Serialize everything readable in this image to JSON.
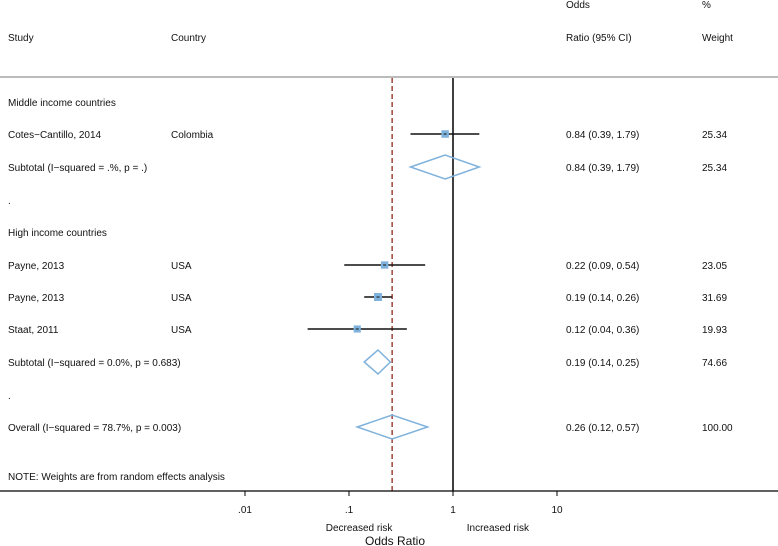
{
  "chart_data": {
    "type": "forest",
    "headers": {
      "study": "Study",
      "country": "Country",
      "or_line1": "Odds",
      "or_line2": "Ratio (95% CI)",
      "weight_line1": "%",
      "weight_line2": "Weight"
    },
    "rows": [
      {
        "kind": "group",
        "label": "Middle income countries"
      },
      {
        "kind": "study",
        "label": "Cotes−Cantillo, 2014",
        "country": "Colombia",
        "or": 0.84,
        "lo": 0.39,
        "hi": 1.79,
        "ci_text": "0.84 (0.39, 1.79)",
        "weight": "25.34",
        "w": 25.34
      },
      {
        "kind": "subtotal",
        "label": "Subtotal  (I−squared = .%, p = .)",
        "or": 0.84,
        "lo": 0.39,
        "hi": 1.79,
        "ci_text": "0.84 (0.39, 1.79)",
        "weight": "25.34"
      },
      {
        "kind": "dot",
        "label": "."
      },
      {
        "kind": "group",
        "label": "High income countries"
      },
      {
        "kind": "study",
        "label": "Payne, 2013",
        "country": "USA",
        "or": 0.22,
        "lo": 0.09,
        "hi": 0.54,
        "ci_text": "0.22 (0.09, 0.54)",
        "weight": "23.05",
        "w": 23.05
      },
      {
        "kind": "study",
        "label": "Payne, 2013",
        "country": "USA",
        "or": 0.19,
        "lo": 0.14,
        "hi": 0.26,
        "ci_text": "0.19 (0.14, 0.26)",
        "weight": "31.69",
        "w": 31.69
      },
      {
        "kind": "study",
        "label": "Staat, 2011",
        "country": "USA",
        "or": 0.12,
        "lo": 0.04,
        "hi": 0.36,
        "ci_text": "0.12 (0.04, 0.36)",
        "weight": "19.93",
        "w": 19.93
      },
      {
        "kind": "subtotal",
        "label": "Subtotal  (I−squared = 0.0%, p = 0.683)",
        "or": 0.19,
        "lo": 0.14,
        "hi": 0.25,
        "ci_text": "0.19 (0.14, 0.25)",
        "weight": "74.66"
      },
      {
        "kind": "dot",
        "label": "."
      },
      {
        "kind": "overall",
        "label": "Overall  (I−squared = 78.7%, p = 0.003)",
        "or": 0.26,
        "lo": 0.12,
        "hi": 0.57,
        "ci_text": "0.26 (0.12, 0.57)",
        "weight": "100.00"
      }
    ],
    "note": "NOTE: Weights are from random effects analysis",
    "x_scale": "log",
    "xlim": [
      0.005,
      35
    ],
    "x_ticks": [
      0.01,
      0.1,
      1,
      10
    ],
    "x_tick_labels": [
      ".01",
      ".1",
      "1",
      "10"
    ],
    "null_value": 1,
    "overall_line_value": 0.26,
    "xlabel": "Odds Ratio",
    "left_annotation": "Decreased risk",
    "right_annotation": "Increased risk",
    "colors": {
      "marker": "#7fb2dc",
      "diamond": "#7fb2dc",
      "overall_line": "#a0443c",
      "ci_line": "#111111",
      "divider": "#bbbbbb"
    }
  }
}
